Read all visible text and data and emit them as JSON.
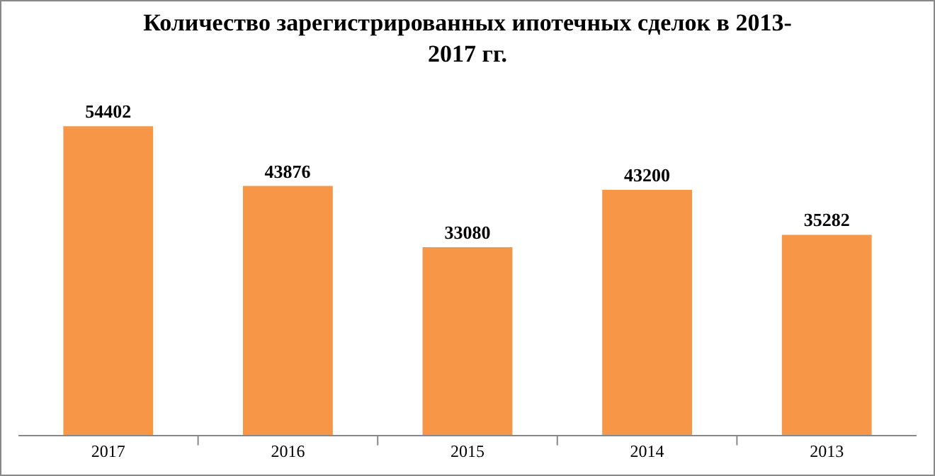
{
  "chart_data": {
    "type": "bar",
    "title": "Количество зарегистрированных ипотечных сделок в 2013-\n2017 гг.",
    "categories": [
      "2017",
      "2016",
      "2015",
      "2014",
      "2013"
    ],
    "values": [
      54402,
      43876,
      33080,
      43200,
      35282
    ],
    "color": "#f79646",
    "data_labels": true,
    "grid": false,
    "legend": false
  }
}
